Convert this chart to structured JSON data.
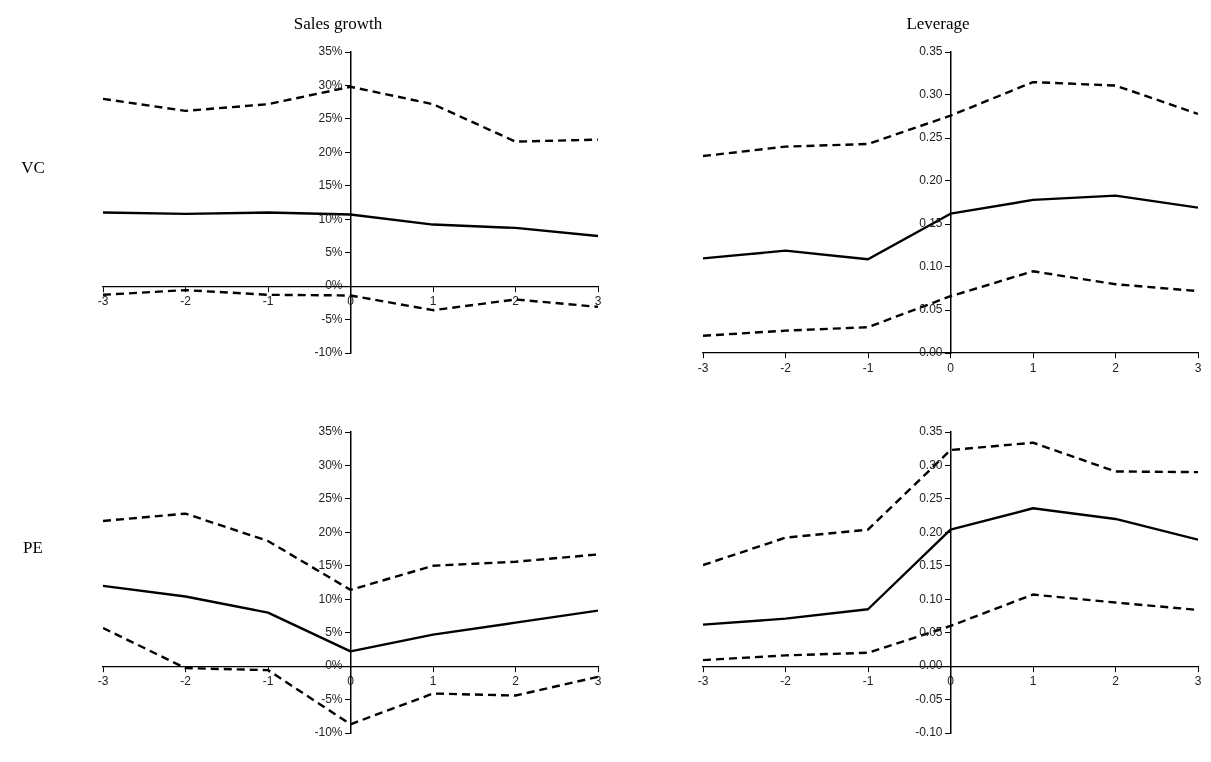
{
  "chart_data": [
    {
      "type": "line",
      "title": "Sales growth",
      "ylabel": "VC",
      "x": [
        -3,
        -2,
        -1,
        0,
        1,
        2,
        3
      ],
      "xlim": [
        -3,
        3
      ],
      "xticks": [
        -3,
        -2,
        -1,
        0,
        1,
        2,
        3
      ],
      "ylim": [
        -10,
        35
      ],
      "yticks": [
        {
          "value": -10,
          "label": "-10%"
        },
        {
          "value": -5,
          "label": "-5%"
        },
        {
          "value": 0,
          "label": "0%"
        },
        {
          "value": 5,
          "label": "5%"
        },
        {
          "value": 10,
          "label": "10%"
        },
        {
          "value": 15,
          "label": "15%"
        },
        {
          "value": 20,
          "label": "20%"
        },
        {
          "value": 25,
          "label": "25%"
        },
        {
          "value": 30,
          "label": "30%"
        },
        {
          "value": 35,
          "label": "35%"
        }
      ],
      "grid": false,
      "legend": false,
      "marker": "none",
      "series": [
        {
          "color": "#000000",
          "line_style": "dashed",
          "values": [
            28,
            26.2,
            27.2,
            29.8,
            27.2,
            21.6,
            21.9
          ]
        },
        {
          "color": "#000000",
          "line_style": "solid",
          "values": [
            11,
            10.8,
            11,
            10.7,
            9.2,
            8.7,
            7.5
          ]
        },
        {
          "color": "#000000",
          "line_style": "dashed",
          "values": [
            -1.3,
            -0.6,
            -1.3,
            -1.4,
            -3.6,
            -2,
            -3.1
          ]
        }
      ]
    },
    {
      "type": "line",
      "title": "Leverage",
      "x": [
        -3,
        -2,
        -1,
        0,
        1,
        2,
        3
      ],
      "xlim": [
        -3,
        3
      ],
      "xticks": [
        -3,
        -2,
        -1,
        0,
        1,
        2,
        3
      ],
      "ylim": [
        0,
        0.35
      ],
      "yticks": [
        {
          "value": 0,
          "label": "0.00"
        },
        {
          "value": 0.05,
          "label": "0.05"
        },
        {
          "value": 0.1,
          "label": "0.10"
        },
        {
          "value": 0.15,
          "label": "0.15"
        },
        {
          "value": 0.2,
          "label": "0.20"
        },
        {
          "value": 0.25,
          "label": "0.25"
        },
        {
          "value": 0.3,
          "label": "0.30"
        },
        {
          "value": 0.35,
          "label": "0.35"
        }
      ],
      "grid": false,
      "legend": false,
      "marker": "none",
      "series": [
        {
          "color": "#000000",
          "line_style": "dashed",
          "values": [
            0.229,
            0.24,
            0.243,
            0.276,
            0.315,
            0.311,
            0.278
          ]
        },
        {
          "color": "#000000",
          "line_style": "solid",
          "values": [
            0.11,
            0.119,
            0.109,
            0.162,
            0.178,
            0.183,
            0.169
          ]
        },
        {
          "color": "#000000",
          "line_style": "dashed",
          "values": [
            0.02,
            0.026,
            0.03,
            0.066,
            0.095,
            0.08,
            0.072
          ]
        }
      ]
    },
    {
      "type": "line",
      "ylabel": "PE",
      "x": [
        -3,
        -2,
        -1,
        0,
        1,
        2,
        3
      ],
      "xlim": [
        -3,
        3
      ],
      "xticks": [
        -3,
        -2,
        -1,
        0,
        1,
        2,
        3
      ],
      "ylim": [
        -10,
        35
      ],
      "yticks": [
        {
          "value": -10,
          "label": "-10%"
        },
        {
          "value": -5,
          "label": "-5%"
        },
        {
          "value": 0,
          "label": "0%"
        },
        {
          "value": 5,
          "label": "5%"
        },
        {
          "value": 10,
          "label": "10%"
        },
        {
          "value": 15,
          "label": "15%"
        },
        {
          "value": 20,
          "label": "20%"
        },
        {
          "value": 25,
          "label": "25%"
        },
        {
          "value": 30,
          "label": "30%"
        },
        {
          "value": 35,
          "label": "35%"
        }
      ],
      "grid": false,
      "legend": false,
      "marker": "none",
      "series": [
        {
          "color": "#000000",
          "line_style": "dashed",
          "values": [
            21.7,
            22.8,
            18.7,
            11.4,
            15,
            15.6,
            16.7
          ]
        },
        {
          "color": "#000000",
          "line_style": "solid",
          "values": [
            12,
            10.4,
            8,
            2.2,
            4.7,
            6.5,
            8.3
          ]
        },
        {
          "color": "#000000",
          "line_style": "dashed",
          "values": [
            5.7,
            -0.3,
            -0.6,
            -8.7,
            -4.1,
            -4.4,
            -1.6
          ]
        }
      ]
    },
    {
      "type": "line",
      "x": [
        -3,
        -2,
        -1,
        0,
        1,
        2,
        3
      ],
      "xlim": [
        -3,
        3
      ],
      "xticks": [
        -3,
        -2,
        -1,
        0,
        1,
        2,
        3
      ],
      "ylim": [
        -0.1,
        0.35
      ],
      "yticks": [
        {
          "value": -0.1,
          "label": "-0.10"
        },
        {
          "value": -0.05,
          "label": "-0.05"
        },
        {
          "value": 0,
          "label": "0.00"
        },
        {
          "value": 0.05,
          "label": "0.05"
        },
        {
          "value": 0.1,
          "label": "0.10"
        },
        {
          "value": 0.15,
          "label": "0.15"
        },
        {
          "value": 0.2,
          "label": "0.20"
        },
        {
          "value": 0.25,
          "label": "0.25"
        },
        {
          "value": 0.3,
          "label": "0.30"
        },
        {
          "value": 0.35,
          "label": "0.35"
        }
      ],
      "grid": false,
      "legend": false,
      "marker": "none",
      "series": [
        {
          "color": "#000000",
          "line_style": "dashed",
          "values": [
            0.151,
            0.192,
            0.204,
            0.323,
            0.334,
            0.291,
            0.29
          ]
        },
        {
          "color": "#000000",
          "line_style": "solid",
          "values": [
            0.062,
            0.071,
            0.085,
            0.204,
            0.236,
            0.22,
            0.189
          ]
        },
        {
          "color": "#000000",
          "line_style": "dashed",
          "values": [
            0.009,
            0.016,
            0.02,
            0.06,
            0.107,
            0.095,
            0.084
          ]
        }
      ]
    }
  ]
}
